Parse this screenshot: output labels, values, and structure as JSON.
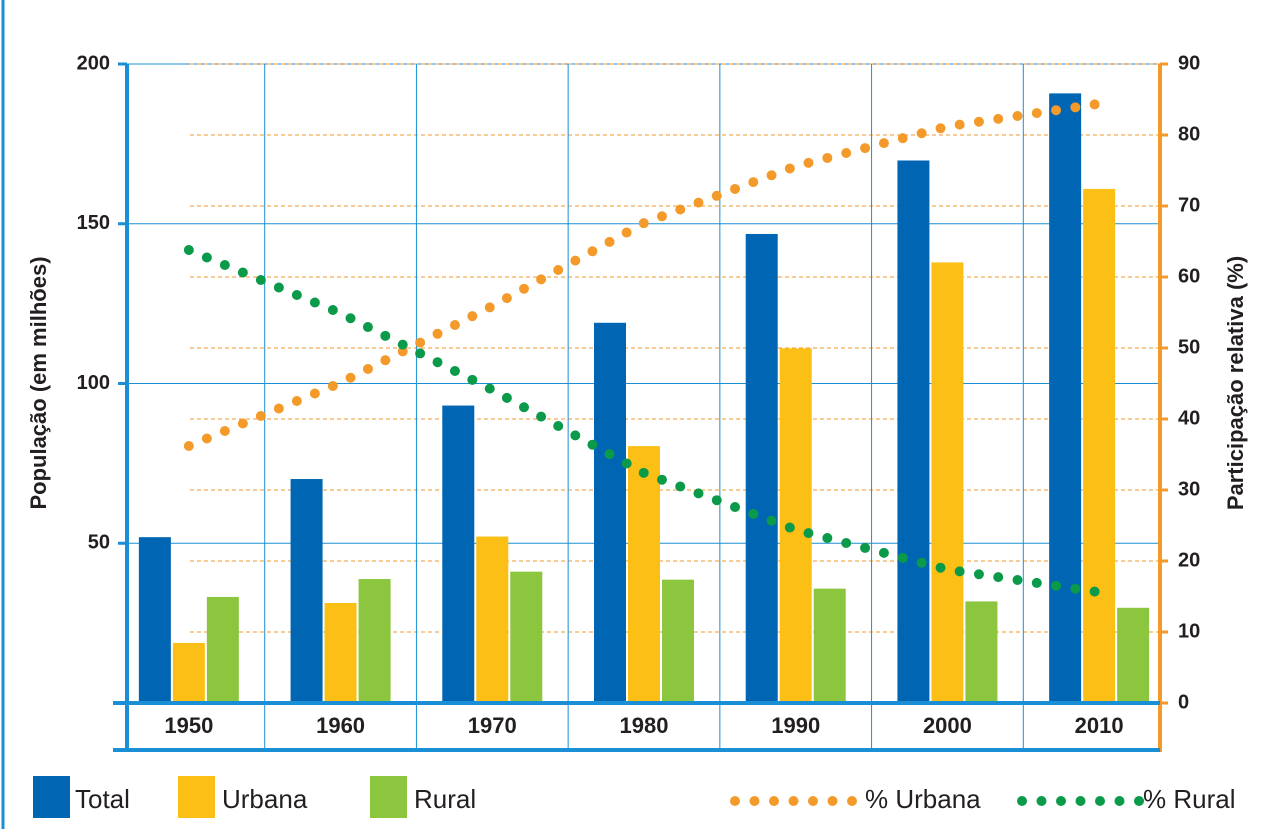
{
  "chart_data": {
    "type": "bar",
    "y_label": "População (em milhões)",
    "y2_label": "Participação relativa (%)",
    "categories": [
      "1950",
      "1960",
      "1970",
      "1980",
      "1990",
      "2000",
      "2010"
    ],
    "series": [
      {
        "name": "Total",
        "color": "#0066b3",
        "values": [
          51.9,
          70.1,
          93.1,
          119.0,
          146.8,
          169.8,
          190.8
        ]
      },
      {
        "name": "Urbana",
        "color": "#fbbf16",
        "values": [
          18.8,
          31.3,
          52.1,
          80.4,
          111.0,
          137.9,
          160.9
        ]
      },
      {
        "name": "Rural",
        "color": "#8cc63f",
        "values": [
          33.2,
          38.8,
          41.1,
          38.6,
          35.8,
          31.8,
          29.8
        ]
      },
      {
        "name": "% Urbana",
        "color": "#f39a2b",
        "axis": "y2",
        "values": [
          36.2,
          45.1,
          55.9,
          67.6,
          75.6,
          81.2,
          84.4
        ]
      },
      {
        "name": "% Rural",
        "color": "#0a9a4a",
        "axis": "y2",
        "values": [
          63.8,
          54.9,
          44.1,
          32.4,
          24.4,
          18.8,
          15.6
        ]
      }
    ],
    "ylim": [
      0,
      200
    ],
    "yticks": [
      50,
      100,
      150,
      200
    ],
    "y2lim": [
      0,
      90
    ],
    "y2ticks": [
      0,
      10,
      20,
      30,
      40,
      50,
      60,
      70,
      80,
      90
    ],
    "grid": true
  }
}
